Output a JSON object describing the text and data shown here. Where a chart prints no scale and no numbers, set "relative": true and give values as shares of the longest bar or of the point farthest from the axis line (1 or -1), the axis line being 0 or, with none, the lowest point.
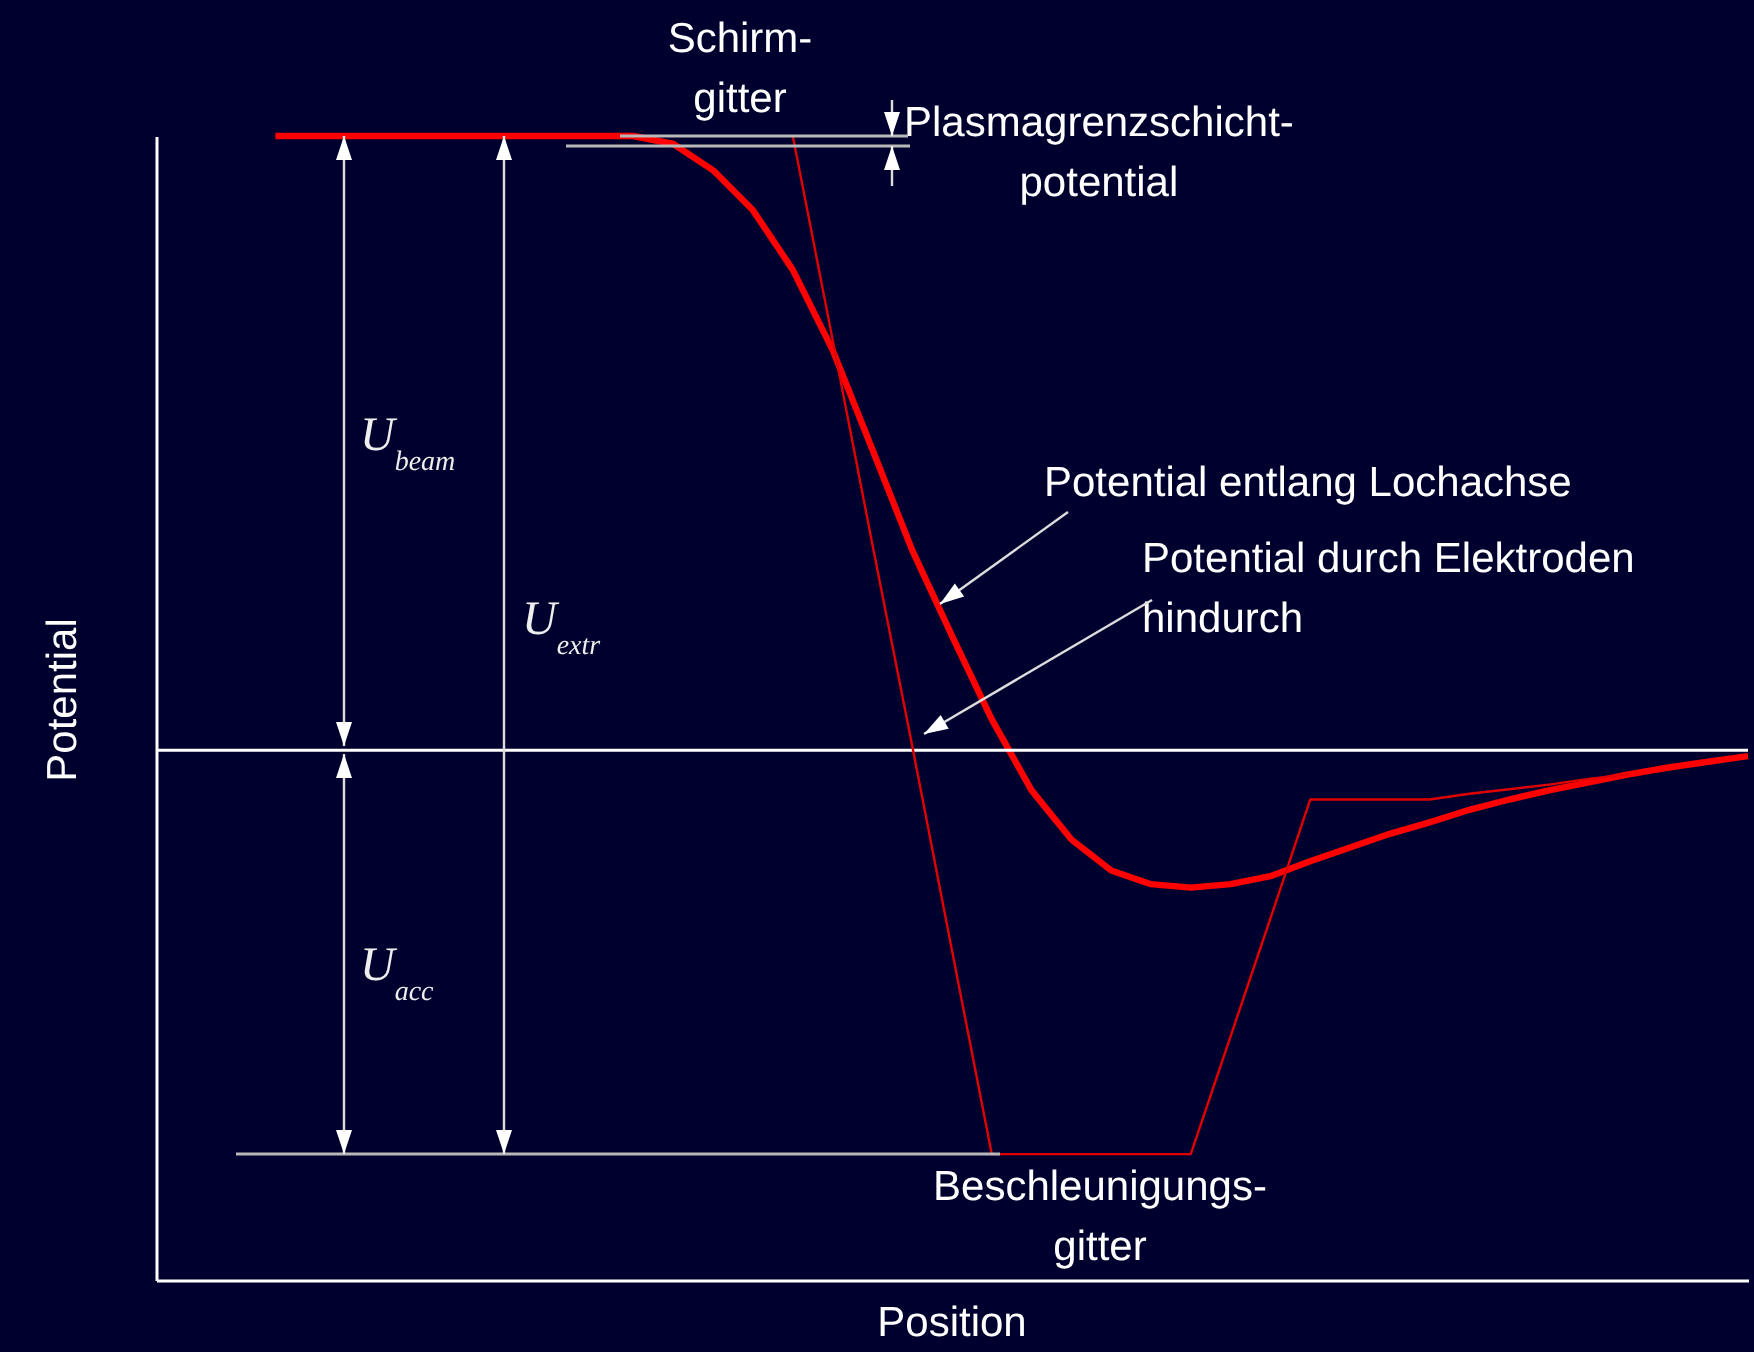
{
  "chart_data": {
    "type": "line",
    "relative": true,
    "xlabel": "Position",
    "ylabel": "Potential",
    "categories": [
      null,
      null,
      null,
      null,
      null,
      null,
      null,
      null,
      null,
      null,
      null,
      null,
      null,
      null,
      null,
      null,
      null,
      null,
      null,
      null,
      null,
      null,
      null,
      null,
      null,
      null,
      null,
      null,
      null,
      null,
      null,
      null,
      null,
      null,
      null,
      null,
      null,
      null,
      null,
      null,
      null
    ],
    "series": [
      {
        "color": "#ff0000",
        "values": [
          null,
          null,
          null,
          1.0,
          1.0,
          1.0,
          1.0,
          1.0,
          1.0,
          1.0,
          1.0,
          1.0,
          1.0,
          0.993,
          0.97,
          0.935,
          0.883,
          0.813,
          0.726,
          0.638,
          0.563,
          0.49,
          0.428,
          0.385,
          0.358,
          0.346,
          0.343,
          0.346,
          0.353,
          0.366,
          0.378,
          0.39,
          0.4,
          0.411,
          0.42,
          0.428,
          0.435,
          0.442,
          0.448,
          0.453,
          0.458
        ]
      },
      {
        "color": "#e00000",
        "values": [
          null,
          null,
          null,
          null,
          null,
          null,
          null,
          null,
          null,
          null,
          null,
          null,
          null,
          null,
          null,
          null,
          1.0,
          0.822,
          0.643,
          0.467,
          0.288,
          0.11,
          0.11,
          0.11,
          0.11,
          0.11,
          0.11,
          0.213,
          0.316,
          0.42,
          0.42,
          0.42,
          0.42,
          0.425,
          0.429,
          0.433,
          0.438,
          0.442,
          null,
          null,
          null
        ]
      }
    ],
    "ref_lines": [
      {
        "axis": "y",
        "value": 0.463,
        "color": "#ffffff"
      }
    ],
    "annotations": [
      "Schirm-\ngitter",
      "Plasmagrenzschicht-\npotential",
      "Beschleunigungs-\ngitter",
      "U$_{beam}$",
      "U$_{extr}$",
      "U$_{acc}$",
      "Potential entlang Lochachse",
      "Potential durch Elektroden\nhindurch"
    ],
    "grid": false,
    "tick_labels": false
  }
}
